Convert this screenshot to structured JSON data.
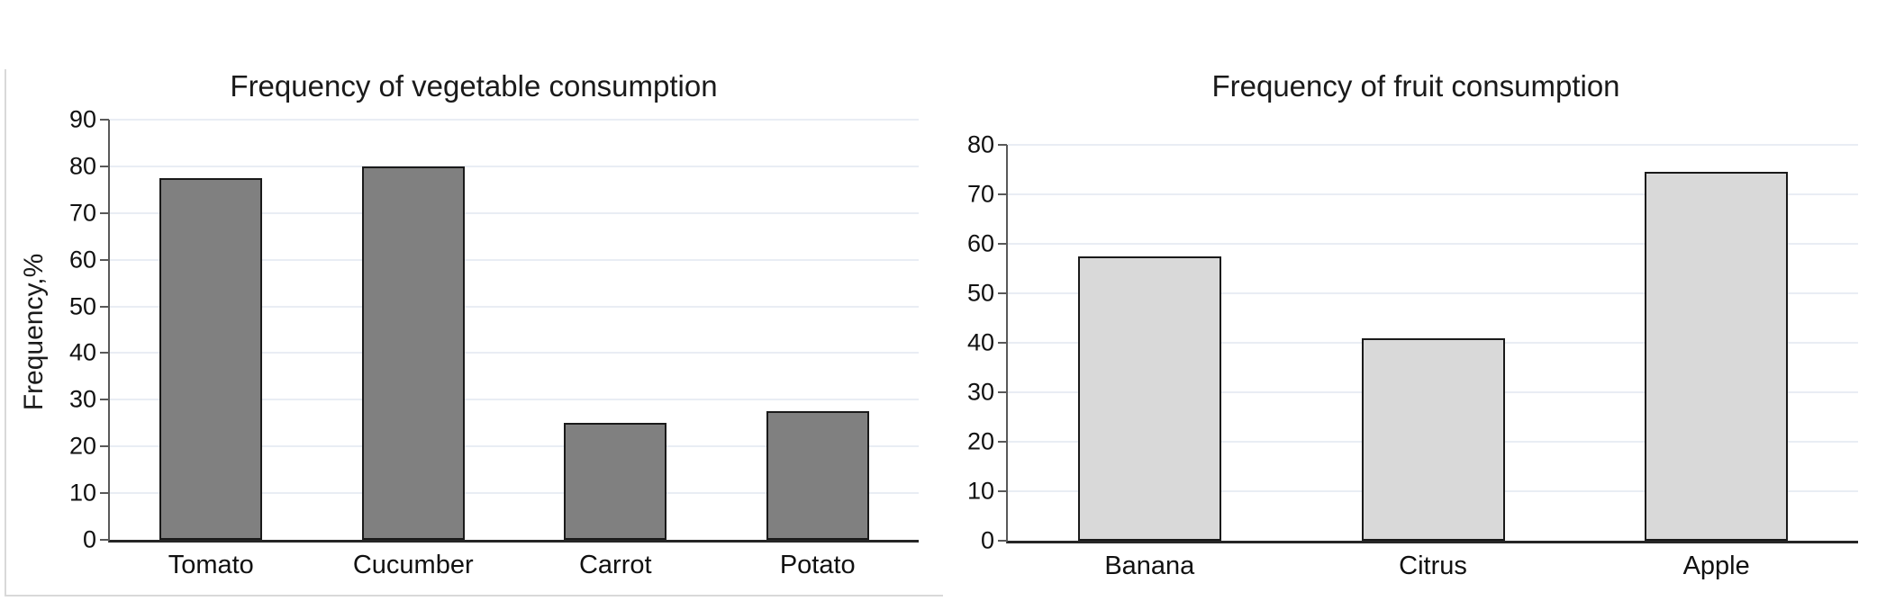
{
  "chart_data": [
    {
      "type": "bar",
      "title": "Frequency of vegetable consumption",
      "ylabel": "Frequency,%",
      "xlabel": "",
      "categories": [
        "Tomato",
        "Cucumber",
        "Carrot",
        "Potato"
      ],
      "values": [
        77.5,
        80,
        25,
        27.5
      ],
      "ylim": [
        0,
        90
      ],
      "ytick_step": 10,
      "ytick_labels": [
        "0",
        "10",
        "20",
        "30",
        "40",
        "50",
        "60",
        "70",
        "80",
        "90"
      ],
      "grid": true,
      "legend": "none",
      "bar_fill": "#808080",
      "bar_border": "#1a1a1a"
    },
    {
      "type": "bar",
      "title": "Frequency of fruit consumption",
      "ylabel": "",
      "xlabel": "",
      "categories": [
        "Banana",
        "Citrus",
        "Apple"
      ],
      "values": [
        57.5,
        41,
        74.5
      ],
      "ylim": [
        0,
        80
      ],
      "ytick_step": 10,
      "ytick_labels": [
        "0",
        "10",
        "20",
        "30",
        "40",
        "50",
        "60",
        "70",
        "80"
      ],
      "grid": true,
      "legend": "none",
      "bar_fill": "#d9d9d9",
      "bar_border": "#1a1a1a"
    }
  ],
  "colors": {
    "background": "#ffffff",
    "gridline": "#e9edf4",
    "y_axis_line": "#595959",
    "x_axis_line": "#262626",
    "chart_frame": "#d9d9d9",
    "text": "#1a1a1a"
  }
}
